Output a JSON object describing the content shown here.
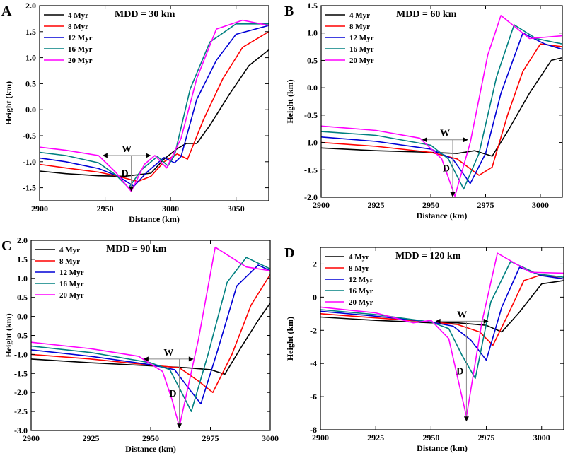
{
  "colors": {
    "4 Myr": "#000000",
    "8 Myr": "#ff0000",
    "12 Myr": "#0000d6",
    "16 Myr": "#008080",
    "20 Myr": "#ff00ff",
    "annotation": "#888888"
  },
  "chart_data": [
    {
      "type": "line",
      "panel": "A",
      "title": "MDD = 30 km",
      "xlabel": "Distance (km)",
      "ylabel": "Height (km)",
      "xlim": [
        2900,
        3075
      ],
      "ylim": [
        -1.75,
        2.0
      ],
      "xticks": [
        "2900",
        "2950",
        "3000",
        "3050"
      ],
      "yticks": [
        "-1.5",
        "-1.0",
        "-0.5",
        "0.0",
        "0.5",
        "1.0",
        "1.5",
        "2.0"
      ],
      "legend": "top-left",
      "annotation": {
        "w_label": "W",
        "d_label": "D",
        "w_from": 2948,
        "w_to": 2985,
        "w_y": -0.88,
        "d_x": 2970,
        "d_top": -0.88,
        "d_bottom": -1.57
      },
      "series": [
        {
          "name": "4 Myr",
          "x": [
            2900,
            2920,
            2945,
            2965,
            2985,
            2995,
            3005,
            3012,
            3020,
            3030,
            3045,
            3060,
            3075
          ],
          "y": [
            -1.18,
            -1.23,
            -1.27,
            -1.28,
            -1.22,
            -0.95,
            -0.75,
            -0.65,
            -0.65,
            -0.3,
            0.3,
            0.85,
            1.15
          ]
        },
        {
          "name": "8 Myr",
          "x": [
            2900,
            2920,
            2945,
            2960,
            2975,
            2985,
            2995,
            3005,
            3013,
            3025,
            3040,
            3055,
            3075
          ],
          "y": [
            -1.05,
            -1.12,
            -1.2,
            -1.28,
            -1.38,
            -1.28,
            -1.0,
            -0.85,
            -0.95,
            -0.2,
            0.6,
            1.2,
            1.5
          ]
        },
        {
          "name": "12 Myr",
          "x": [
            2900,
            2920,
            2945,
            2960,
            2972,
            2982,
            2995,
            3003,
            3008,
            3020,
            3035,
            3050,
            3075
          ],
          "y": [
            -0.93,
            -1.0,
            -1.13,
            -1.28,
            -1.47,
            -1.2,
            -0.92,
            -1.02,
            -0.9,
            0.2,
            0.95,
            1.45,
            1.62
          ]
        },
        {
          "name": "16 Myr",
          "x": [
            2900,
            2920,
            2945,
            2958,
            2968,
            2978,
            2990,
            2998,
            3003,
            3015,
            3030,
            3050,
            3075
          ],
          "y": [
            -0.82,
            -0.88,
            -1.02,
            -1.25,
            -1.5,
            -1.15,
            -0.9,
            -1.08,
            -0.88,
            0.4,
            1.3,
            1.65,
            1.65
          ]
        },
        {
          "name": "20 Myr",
          "x": [
            2900,
            2920,
            2945,
            2958,
            2970,
            2980,
            2988,
            2997,
            3008,
            3020,
            3035,
            3055,
            3075
          ],
          "y": [
            -0.72,
            -0.78,
            -0.88,
            -1.2,
            -1.57,
            -1.05,
            -0.88,
            -1.12,
            -0.55,
            0.6,
            1.55,
            1.72,
            1.62
          ]
        }
      ]
    },
    {
      "type": "line",
      "panel": "B",
      "title": "MDD = 60 km",
      "xlabel": "Distance (km)",
      "ylabel": "Height (km)",
      "xlim": [
        2900,
        3010
      ],
      "ylim": [
        -2.0,
        1.5
      ],
      "xticks": [
        "2900",
        "2925",
        "2950",
        "2975",
        "3000"
      ],
      "yticks": [
        "-2.0",
        "-1.5",
        "-1.0",
        "-0.5",
        "0.0",
        "0.5",
        "1.0",
        "1.5"
      ],
      "legend": "top-left",
      "annotation": {
        "w_label": "W",
        "d_label": "D",
        "w_from": 2946,
        "w_to": 2967,
        "w_y": -0.95,
        "d_x": 2960,
        "d_top": -0.95,
        "d_bottom": -2.0
      },
      "series": [
        {
          "name": "4 Myr",
          "x": [
            2900,
            2925,
            2950,
            2962,
            2970,
            2978,
            2985,
            2995,
            3005,
            3010
          ],
          "y": [
            -1.1,
            -1.15,
            -1.18,
            -1.2,
            -1.15,
            -1.25,
            -0.8,
            -0.1,
            0.5,
            0.55
          ]
        },
        {
          "name": "8 Myr",
          "x": [
            2900,
            2925,
            2950,
            2962,
            2972,
            2978,
            2985,
            2992,
            3000,
            3010
          ],
          "y": [
            -1.0,
            -1.07,
            -1.18,
            -1.3,
            -1.6,
            -1.45,
            -0.5,
            0.3,
            0.8,
            0.75
          ]
        },
        {
          "name": "12 Myr",
          "x": [
            2900,
            2925,
            2950,
            2960,
            2968,
            2975,
            2982,
            2992,
            3002,
            3010
          ],
          "y": [
            -0.9,
            -0.98,
            -1.12,
            -1.3,
            -1.75,
            -1.2,
            -0.1,
            1.0,
            0.8,
            0.7
          ]
        },
        {
          "name": "16 Myr",
          "x": [
            2900,
            2925,
            2950,
            2958,
            2965,
            2972,
            2980,
            2988,
            2998,
            3010
          ],
          "y": [
            -0.8,
            -0.87,
            -1.05,
            -1.3,
            -1.85,
            -1.2,
            0.2,
            1.15,
            0.9,
            0.8
          ]
        },
        {
          "name": "20 Myr",
          "x": [
            2900,
            2925,
            2945,
            2955,
            2961,
            2968,
            2976,
            2982,
            2995,
            3010
          ],
          "y": [
            -0.7,
            -0.78,
            -0.92,
            -1.3,
            -1.98,
            -1.0,
            0.6,
            1.32,
            0.9,
            0.95
          ]
        }
      ]
    },
    {
      "type": "line",
      "panel": "C",
      "title": "MDD = 90 km",
      "xlabel": "Distance (km)",
      "ylabel": "Height (km)",
      "xlim": [
        2900,
        3000
      ],
      "ylim": [
        -3.0,
        2.0
      ],
      "xticks": [
        "2900",
        "2925",
        "2950",
        "2975",
        "3000"
      ],
      "yticks": [
        "-3.0",
        "-2.5",
        "-2.0",
        "-1.5",
        "-1.0",
        "-0.5",
        "0.0",
        "0.5",
        "1.0",
        "1.5",
        "2.0"
      ],
      "legend": "top-left",
      "annotation": {
        "w_label": "W",
        "d_label": "D",
        "w_from": 2947,
        "w_to": 2968,
        "w_y": -1.12,
        "d_x": 2962,
        "d_top": -1.12,
        "d_bottom": -2.95
      },
      "series": [
        {
          "name": "4 Myr",
          "x": [
            2900,
            2925,
            2950,
            2965,
            2975,
            2981,
            2988,
            2995,
            3000
          ],
          "y": [
            -1.12,
            -1.22,
            -1.3,
            -1.35,
            -1.4,
            -1.52,
            -0.8,
            -0.1,
            0.35
          ]
        },
        {
          "name": "8 Myr",
          "x": [
            2900,
            2925,
            2950,
            2962,
            2970,
            2976,
            2984,
            2992,
            3000
          ],
          "y": [
            -1.0,
            -1.12,
            -1.28,
            -1.35,
            -1.7,
            -2.0,
            -1.0,
            0.3,
            1.1
          ]
        },
        {
          "name": "12 Myr",
          "x": [
            2900,
            2925,
            2950,
            2960,
            2966,
            2971,
            2978,
            2986,
            2995,
            3000
          ],
          "y": [
            -0.88,
            -1.05,
            -1.27,
            -1.4,
            -1.9,
            -2.3,
            -0.9,
            0.8,
            1.35,
            1.2
          ]
        },
        {
          "name": "16 Myr",
          "x": [
            2900,
            2925,
            2950,
            2958,
            2963,
            2967,
            2974,
            2982,
            2990,
            3000
          ],
          "y": [
            -0.78,
            -0.95,
            -1.22,
            -1.4,
            -2.0,
            -2.5,
            -1.0,
            0.9,
            1.55,
            1.25
          ]
        },
        {
          "name": "20 Myr",
          "x": [
            2900,
            2925,
            2945,
            2955,
            2959,
            2962,
            2970,
            2977,
            2990,
            3000
          ],
          "y": [
            -0.68,
            -0.85,
            -1.05,
            -1.45,
            -2.2,
            -2.9,
            -0.6,
            1.82,
            1.3,
            1.2
          ]
        }
      ]
    },
    {
      "type": "line",
      "panel": "D",
      "title": "MDD = 120 km",
      "xlabel": "Distance (km)",
      "ylabel": "Height (km)",
      "xlim": [
        2900,
        3010
      ],
      "ylim": [
        -8,
        3
      ],
      "xticks": [
        "2900",
        "2925",
        "2950",
        "2975",
        "3000"
      ],
      "yticks": [
        "-8",
        "-6",
        "-4",
        "-2",
        "0",
        "2"
      ],
      "legend": "top-left",
      "annotation": {
        "w_label": "W",
        "d_label": "D",
        "w_from": 2952,
        "w_to": 2976,
        "w_y": -1.45,
        "d_x": 2966,
        "d_top": -1.45,
        "d_bottom": -7.5
      },
      "series": [
        {
          "name": "4 Myr",
          "x": [
            2900,
            2925,
            2950,
            2962,
            2975,
            2982,
            2990,
            3000,
            3010
          ],
          "y": [
            -1.2,
            -1.4,
            -1.55,
            -1.55,
            -1.7,
            -2.1,
            -0.9,
            0.8,
            1.0
          ]
        },
        {
          "name": "8 Myr",
          "x": [
            2900,
            2925,
            2950,
            2962,
            2972,
            2978,
            2985,
            2992,
            3000,
            3010
          ],
          "y": [
            -1.0,
            -1.25,
            -1.5,
            -1.65,
            -2.1,
            -2.9,
            -1.0,
            1.0,
            1.35,
            1.1
          ]
        },
        {
          "name": "12 Myr",
          "x": [
            2900,
            2925,
            2950,
            2960,
            2968,
            2975,
            2982,
            2990,
            3000,
            3010
          ],
          "y": [
            -0.85,
            -1.15,
            -1.5,
            -1.75,
            -2.6,
            -3.8,
            -0.6,
            1.8,
            1.3,
            1.1
          ]
        },
        {
          "name": "16 Myr",
          "x": [
            2900,
            2925,
            2950,
            2958,
            2964,
            2970,
            2977,
            2986,
            2998,
            3010
          ],
          "y": [
            -0.75,
            -1.05,
            -1.5,
            -1.9,
            -3.5,
            -4.9,
            -0.3,
            2.15,
            1.4,
            1.2
          ]
        },
        {
          "name": "20 Myr",
          "x": [
            2900,
            2925,
            2942,
            2950,
            2958,
            2966,
            2973,
            2980,
            2995,
            3010
          ],
          "y": [
            -0.6,
            -0.95,
            -1.55,
            -1.4,
            -2.5,
            -7.2,
            -1.5,
            2.65,
            1.5,
            1.45
          ]
        }
      ]
    }
  ]
}
